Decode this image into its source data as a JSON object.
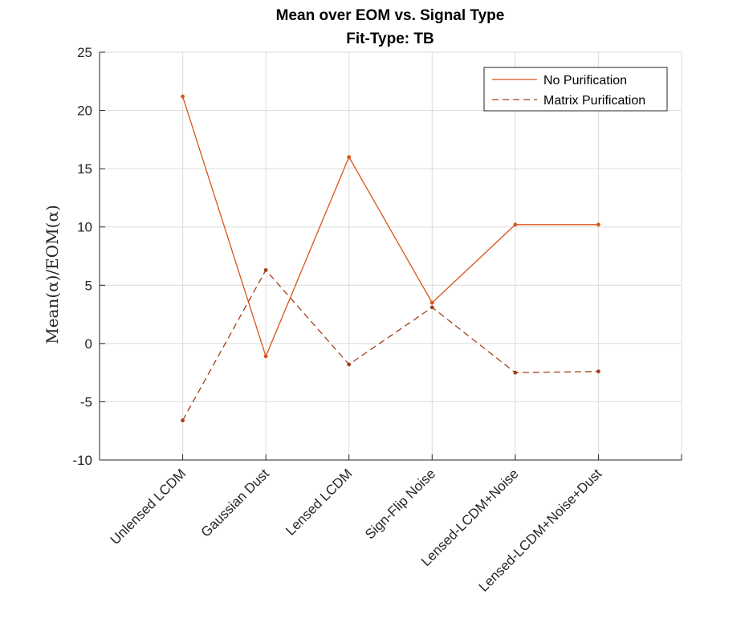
{
  "chart_data": {
    "type": "line",
    "title": "Mean over EOM vs. Signal Type",
    "subtitle": "Fit-Type: TB",
    "xlabel": "",
    "ylabel": "Mean(α)/EOM(α)",
    "categories": [
      "Unlensed LCDM",
      "Gaussian Dust",
      "Lensed LCDM",
      "Sign-Flip Noise",
      "Lensed-LCDM+Noise",
      "Lensed-LCDM+Noise+Dust"
    ],
    "ylim": [
      -10,
      25
    ],
    "yticks": [
      -10,
      -5,
      0,
      5,
      10,
      15,
      20,
      25
    ],
    "grid": true,
    "legend_position": "top-right",
    "series": [
      {
        "name": "No Purification",
        "values": [
          21.2,
          -1.1,
          16.0,
          3.5,
          10.2,
          10.2
        ],
        "color": "#D95319",
        "dash": "solid"
      },
      {
        "name": "Matrix Purification",
        "values": [
          -6.6,
          6.3,
          -1.8,
          3.1,
          -2.5,
          -2.4
        ],
        "color": "#A2401A",
        "dash": "dashed"
      }
    ]
  }
}
